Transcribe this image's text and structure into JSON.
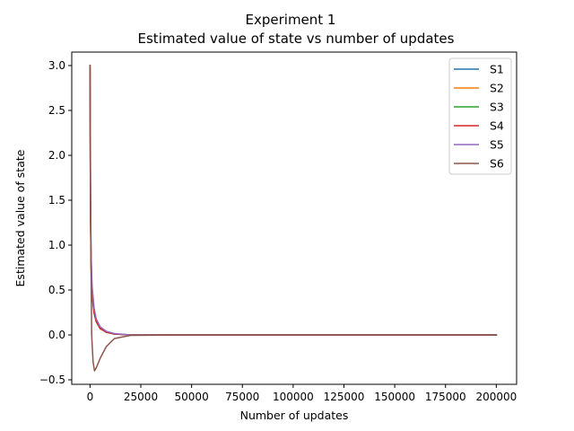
{
  "chart_data": {
    "type": "line",
    "title": "Experiment 1",
    "subtitle": "Estimated value of state vs number of updates",
    "xlabel": "Number of updates",
    "ylabel": "Estimated value of state",
    "xlim": [
      -9000,
      210000
    ],
    "ylim": [
      -0.55,
      3.15
    ],
    "x_ticks": [
      0,
      25000,
      50000,
      75000,
      100000,
      125000,
      150000,
      175000,
      200000
    ],
    "y_ticks": [
      -0.5,
      0.0,
      0.5,
      1.0,
      1.5,
      2.0,
      2.5,
      3.0
    ],
    "y_tick_labels": [
      "−0.5",
      "0.0",
      "0.5",
      "1.0",
      "1.5",
      "2.0",
      "2.5",
      "3.0"
    ],
    "grid": false,
    "legend_position": "top-right",
    "series": [
      {
        "name": "S1",
        "color": "#1f77b4",
        "x": [
          0,
          200,
          500,
          1000,
          2000,
          3000,
          5000,
          8000,
          12000,
          20000,
          50000,
          100000,
          200000
        ],
        "y": [
          3.0,
          1.6,
          0.85,
          0.5,
          0.28,
          0.17,
          0.08,
          0.03,
          0.01,
          0.0,
          0.0,
          0.0,
          0.0
        ]
      },
      {
        "name": "S2",
        "color": "#ff7f0e",
        "x": [
          0,
          200,
          500,
          1000,
          2000,
          3000,
          5000,
          8000,
          12000,
          20000,
          50000,
          100000,
          200000
        ],
        "y": [
          3.0,
          1.5,
          0.8,
          0.46,
          0.26,
          0.16,
          0.08,
          0.03,
          0.01,
          0.0,
          0.0,
          0.0,
          0.0
        ]
      },
      {
        "name": "S3",
        "color": "#2ca02c",
        "x": [
          0,
          200,
          500,
          1000,
          2000,
          3000,
          5000,
          8000,
          12000,
          20000,
          50000,
          100000,
          200000
        ],
        "y": [
          3.0,
          1.4,
          0.75,
          0.43,
          0.24,
          0.15,
          0.07,
          0.03,
          0.01,
          0.0,
          0.0,
          0.0,
          0.0
        ]
      },
      {
        "name": "S4",
        "color": "#d62728",
        "x": [
          0,
          200,
          500,
          1000,
          2000,
          3000,
          5000,
          8000,
          12000,
          20000,
          50000,
          100000,
          200000
        ],
        "y": [
          3.0,
          1.45,
          0.78,
          0.45,
          0.25,
          0.15,
          0.07,
          0.03,
          0.01,
          0.0,
          0.0,
          0.0,
          0.0
        ]
      },
      {
        "name": "S5",
        "color": "#9467bd",
        "x": [
          0,
          200,
          500,
          1000,
          2000,
          3000,
          5000,
          8000,
          12000,
          20000,
          50000,
          100000,
          200000
        ],
        "y": [
          3.0,
          1.7,
          0.9,
          0.55,
          0.3,
          0.18,
          0.09,
          0.04,
          0.015,
          0.0,
          0.0,
          0.0,
          0.0
        ]
      },
      {
        "name": "S6",
        "color": "#8c564b",
        "x": [
          0,
          400,
          800,
          1500,
          2200,
          3000,
          5000,
          8000,
          12000,
          20000,
          50000,
          100000,
          200000
        ],
        "y": [
          3.0,
          1.0,
          0.0,
          -0.3,
          -0.4,
          -0.37,
          -0.26,
          -0.13,
          -0.04,
          -0.005,
          0.0,
          0.0,
          0.0
        ]
      }
    ]
  }
}
